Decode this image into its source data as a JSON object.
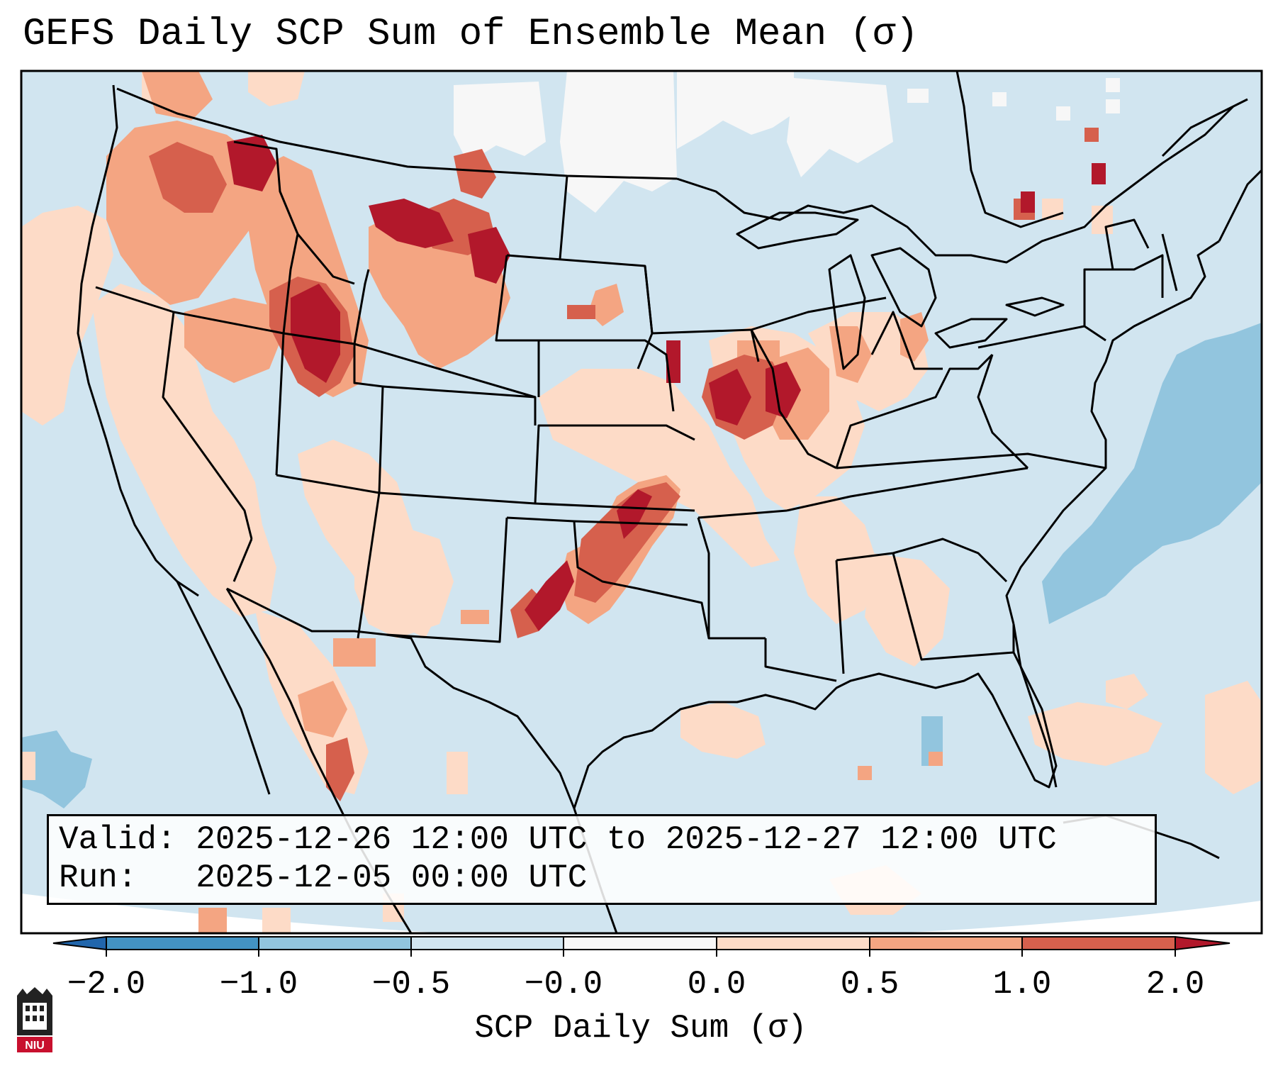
{
  "title": "GEFS Daily SCP Sum of Ensemble Mean (σ)",
  "info": {
    "valid_line": "Valid: 2025-12-26 12:00 UTC to 2025-12-27 12:00 UTC",
    "run_line": "Run:   2025-12-05 00:00 UTC"
  },
  "colorbar": {
    "label": "SCP Daily Sum (σ)",
    "ticks": [
      "−2.0",
      "−1.0",
      "−0.5",
      "−0.0",
      "0.0",
      "0.5",
      "1.0",
      "2.0"
    ],
    "bins": [
      {
        "range": "< -2.0",
        "color": "#2166ac"
      },
      {
        "range": "-2.0 to -1.0",
        "color": "#4393c3"
      },
      {
        "range": "-1.0 to -0.5",
        "color": "#92c5de"
      },
      {
        "range": "-0.5 to -0.0",
        "color": "#d1e5f0"
      },
      {
        "range": "-0.0 to 0.0",
        "color": "#f7f7f7"
      },
      {
        "range": "0.0 to 0.5",
        "color": "#fddbc7"
      },
      {
        "range": "0.5 to 1.0",
        "color": "#f4a582"
      },
      {
        "range": "1.0 to 2.0",
        "color": "#d6604d"
      },
      {
        "range": "> 2.0",
        "color": "#b2182b"
      }
    ]
  },
  "legend_colors": {
    "background": "#d1e5f0",
    "neutral": "#f7f7f7",
    "light_red": "#fddbc7",
    "mid_red": "#f4a582",
    "red": "#d6604d",
    "dark_red": "#b2182b",
    "light_blue": "#92c5de"
  },
  "logo": {
    "text": "NIU",
    "name": "niu-logo"
  }
}
